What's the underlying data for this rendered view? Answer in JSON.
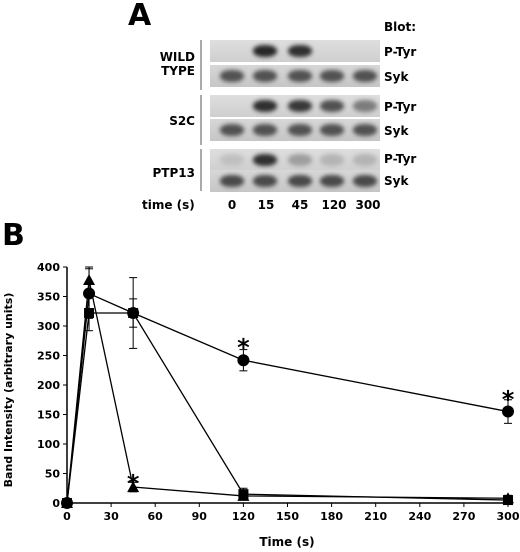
{
  "panel_a": {
    "letter": "A",
    "blot_header": "Blot:",
    "time_axis_label": "time (s)",
    "time_points": [
      "0",
      "15",
      "45",
      "120",
      "300"
    ],
    "groups": [
      {
        "name_lines": [
          "WILD",
          "TYPE"
        ],
        "rows": [
          {
            "antibody": "P-Tyr",
            "band_intensity": [
              0.0,
              0.95,
              0.9,
              0.0,
              0.0
            ]
          },
          {
            "antibody": "Syk",
            "band_intensity": [
              0.7,
              0.7,
              0.7,
              0.7,
              0.7
            ]
          }
        ]
      },
      {
        "name_lines": [
          "S2C"
        ],
        "rows": [
          {
            "antibody": "P-Tyr",
            "band_intensity": [
              0.0,
              0.9,
              0.85,
              0.7,
              0.45
            ]
          },
          {
            "antibody": "Syk",
            "band_intensity": [
              0.7,
              0.7,
              0.7,
              0.7,
              0.7
            ]
          }
        ]
      },
      {
        "name_lines": [
          "PTP13"
        ],
        "rows": [
          {
            "antibody": "P-Tyr",
            "band_intensity": [
              0.05,
              0.9,
              0.25,
              0.12,
              0.12
            ]
          },
          {
            "antibody": "Syk",
            "band_intensity": [
              0.75,
              0.75,
              0.75,
              0.75,
              0.75
            ]
          }
        ]
      }
    ]
  },
  "panel_b": {
    "letter": "B",
    "chart_data": {
      "type": "line",
      "xlabel": "Time (s)",
      "ylabel": "Band Intensity (arbitrary units)",
      "xlim": [
        0,
        300
      ],
      "ylim": [
        0,
        400
      ],
      "xticks": [
        "0",
        "30",
        "60",
        "90",
        "120",
        "150",
        "180",
        "210",
        "240",
        "270",
        "300"
      ],
      "yticks": [
        "0",
        "50",
        "100",
        "150",
        "200",
        "250",
        "300",
        "350",
        "400"
      ],
      "grid": false,
      "series": [
        {
          "marker": "circle",
          "x": [
            0,
            15,
            45,
            120,
            300
          ],
          "y": [
            0,
            355,
            322,
            242,
            155
          ],
          "error": [
            0,
            42,
            60,
            18,
            20
          ]
        },
        {
          "marker": "square",
          "x": [
            0,
            15,
            45,
            120,
            300
          ],
          "y": [
            0,
            322,
            322,
            15,
            5
          ],
          "error": [
            0,
            30,
            24,
            10,
            5
          ]
        },
        {
          "marker": "triangle",
          "x": [
            0,
            15,
            45,
            120,
            300
          ],
          "y": [
            0,
            378,
            27,
            12,
            8
          ],
          "error": [
            0,
            22,
            8,
            5,
            5
          ]
        }
      ],
      "annotations": [
        {
          "text": "*",
          "x": 45,
          "y": 40
        },
        {
          "text": "*",
          "x": 120,
          "y": 270
        },
        {
          "text": "*",
          "x": 300,
          "y": 182
        }
      ]
    }
  }
}
